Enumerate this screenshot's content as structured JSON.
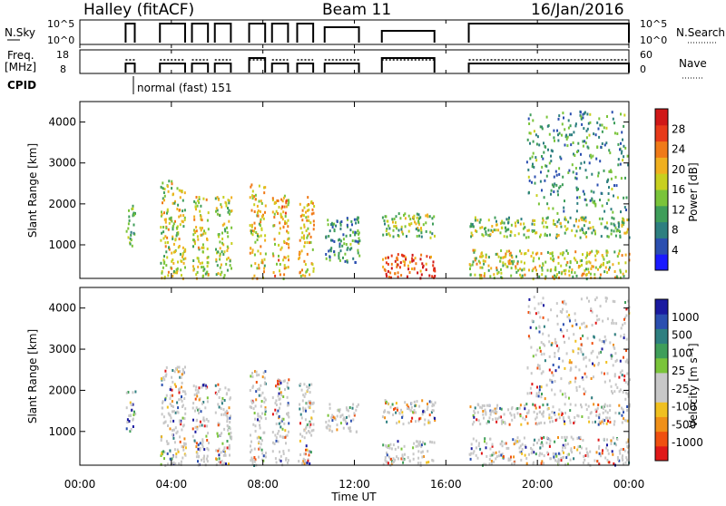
{
  "header": {
    "station": "Halley (fitACF)",
    "beam": "Beam 11",
    "date": "16/Jan/2016"
  },
  "top_panels": {
    "nsky_label": "N.Sky",
    "nsky_ticks": [
      "10^5",
      "10^0"
    ],
    "nsearch_label": "N.Search",
    "nsearch_ticks": [
      "10^5",
      "10^0"
    ],
    "freq_label": "Freq.",
    "freq_unit": "[MHz]",
    "freq_ticks": [
      "18",
      "8"
    ],
    "nave_label": "Nave",
    "nave_ticks": [
      "60",
      "0"
    ],
    "cpid_label": "CPID",
    "cpid_text": "normal (fast) 151"
  },
  "chart_data": [
    {
      "type": "heatmap",
      "title": "",
      "quantity": "Power",
      "ylabel": "Slant Range [km]",
      "yticks": [
        1000,
        2000,
        3000,
        4000
      ],
      "ylim": [
        180,
        4500
      ],
      "xlim": [
        0,
        24
      ],
      "colorbar_label": "Power [dB]",
      "colorbar_ticks": [
        "4",
        "8",
        "12",
        "16",
        "20",
        "24",
        "28"
      ],
      "colorbar_colors": [
        "#1a1aff",
        "#2b4fb0",
        "#2e7f80",
        "#3f9e5a",
        "#7ac43a",
        "#c8d020",
        "#f0b020",
        "#f07a18",
        "#e83a1a",
        "#d01818"
      ],
      "activity_blocks": [
        {
          "start": 2.0,
          "end": 2.4,
          "rmin": 1000,
          "rmax": 2000,
          "level": 0.35
        },
        {
          "start": 3.5,
          "end": 4.6,
          "rmin": 200,
          "rmax": 2600,
          "level": 0.55
        },
        {
          "start": 4.9,
          "end": 5.6,
          "rmin": 200,
          "rmax": 2200,
          "level": 0.55
        },
        {
          "start": 5.9,
          "end": 6.6,
          "rmin": 200,
          "rmax": 2200,
          "level": 0.5
        },
        {
          "start": 7.4,
          "end": 8.1,
          "rmin": 200,
          "rmax": 2500,
          "level": 0.6
        },
        {
          "start": 8.4,
          "end": 9.1,
          "rmin": 200,
          "rmax": 2300,
          "level": 0.65
        },
        {
          "start": 9.5,
          "end": 10.2,
          "rmin": 200,
          "rmax": 2200,
          "level": 0.6
        },
        {
          "start": 10.7,
          "end": 12.2,
          "rmin": 600,
          "rmax": 1700,
          "level": 0.3
        },
        {
          "start": 13.2,
          "end": 15.5,
          "rmin": 200,
          "rmax": 800,
          "level": 0.85
        },
        {
          "start": 13.2,
          "end": 15.5,
          "rmin": 1200,
          "rmax": 1800,
          "level": 0.45
        },
        {
          "start": 17.0,
          "end": 24.0,
          "rmin": 200,
          "rmax": 900,
          "level": 0.55
        },
        {
          "start": 17.0,
          "end": 24.0,
          "rmin": 1200,
          "rmax": 1700,
          "level": 0.45
        },
        {
          "start": 19.5,
          "end": 24.0,
          "rmin": 1800,
          "rmax": 4300,
          "level": 0.3
        }
      ]
    },
    {
      "type": "heatmap",
      "title": "",
      "quantity": "Velocity",
      "ylabel": "Slant Range [km]",
      "yticks": [
        1000,
        2000,
        3000,
        4000
      ],
      "ylim": [
        180,
        4500
      ],
      "xlim": [
        0,
        24
      ],
      "xlabel": "Time UT",
      "xticks": [
        "00:00",
        "04:00",
        "08:00",
        "12:00",
        "16:00",
        "20:00",
        "00:00"
      ],
      "colorbar_label": "Velocity [m s⁻¹]",
      "colorbar_ticks": [
        "-1000",
        "-500",
        "-100",
        "-25",
        "25",
        "100",
        "500",
        "1000"
      ],
      "colorbar_colors": [
        "#e01818",
        "#f05010",
        "#f09018",
        "#f0c020",
        "#c8c8c8",
        "#c8c8c8",
        "#7ac43a",
        "#3f9e5a",
        "#2e7f80",
        "#2b4fb0",
        "#1a1aa0"
      ],
      "activity_blocks": [
        {
          "start": 2.0,
          "end": 2.4,
          "rmin": 1000,
          "rmax": 2000,
          "level": 0.5
        },
        {
          "start": 3.5,
          "end": 4.6,
          "rmin": 200,
          "rmax": 2600,
          "level": 0.5
        },
        {
          "start": 4.9,
          "end": 5.6,
          "rmin": 200,
          "rmax": 2200,
          "level": 0.5
        },
        {
          "start": 5.9,
          "end": 6.6,
          "rmin": 200,
          "rmax": 2200,
          "level": 0.5
        },
        {
          "start": 7.4,
          "end": 8.1,
          "rmin": 200,
          "rmax": 2500,
          "level": 0.5
        },
        {
          "start": 8.4,
          "end": 9.1,
          "rmin": 200,
          "rmax": 2300,
          "level": 0.5
        },
        {
          "start": 9.5,
          "end": 10.2,
          "rmin": 200,
          "rmax": 2200,
          "level": 0.5
        },
        {
          "start": 10.7,
          "end": 12.2,
          "rmin": 1000,
          "rmax": 1700,
          "level": 0.5
        },
        {
          "start": 13.2,
          "end": 15.5,
          "rmin": 200,
          "rmax": 800,
          "level": 0.5
        },
        {
          "start": 13.2,
          "end": 15.5,
          "rmin": 1200,
          "rmax": 1800,
          "level": 0.5
        },
        {
          "start": 17.0,
          "end": 24.0,
          "rmin": 200,
          "rmax": 900,
          "level": 0.5
        },
        {
          "start": 17.0,
          "end": 24.0,
          "rmin": 1200,
          "rmax": 1700,
          "level": 0.5
        },
        {
          "start": 19.5,
          "end": 24.0,
          "rmin": 1800,
          "rmax": 4300,
          "level": 0.5
        }
      ]
    }
  ],
  "operating_intervals_ut": [
    [
      2.0,
      2.4
    ],
    [
      3.5,
      4.6
    ],
    [
      4.9,
      5.6
    ],
    [
      5.9,
      6.6
    ],
    [
      7.4,
      8.1
    ],
    [
      8.4,
      9.1
    ],
    [
      9.5,
      10.2
    ],
    [
      10.7,
      12.2
    ],
    [
      13.2,
      15.5
    ],
    [
      17.0,
      24.0
    ]
  ]
}
